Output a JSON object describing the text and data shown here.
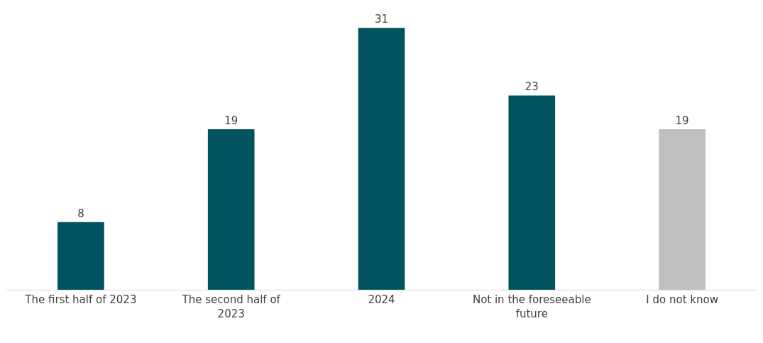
{
  "chart_data": {
    "type": "bar",
    "categories": [
      "The first half of 2023",
      "The second half of 2023",
      "2024",
      "Not in the foreseeable future",
      "I do not know"
    ],
    "values": [
      8,
      19,
      31,
      23,
      19
    ],
    "colors": [
      "#00525f",
      "#00525f",
      "#00525f",
      "#00525f",
      "#bfbfbf"
    ],
    "data_labels": true
  }
}
